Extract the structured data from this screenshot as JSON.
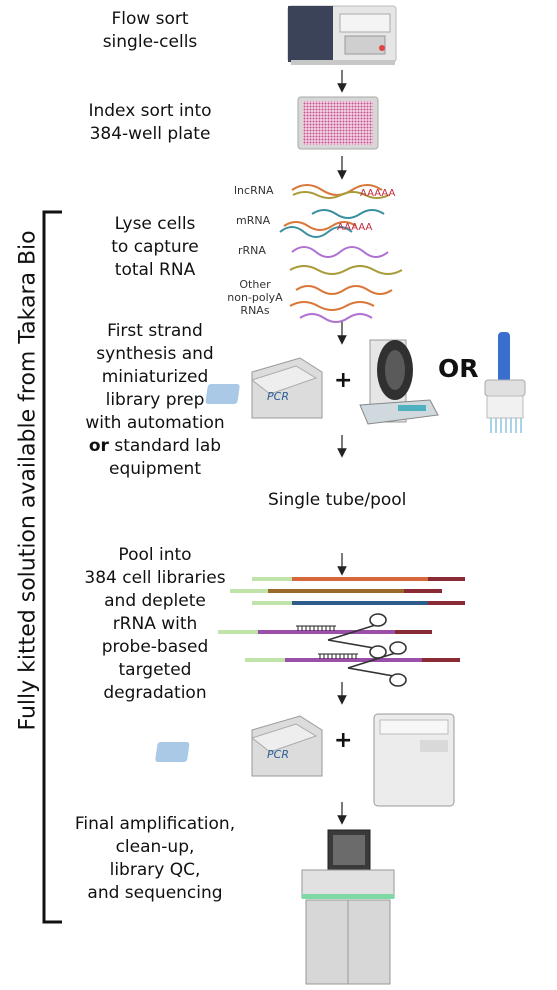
{
  "side_label": "Fully kitted solution available from Takara Bio",
  "steps": {
    "s1": [
      "Flow sort",
      "single-cells"
    ],
    "s2": [
      "Index sort into",
      "384-well plate"
    ],
    "s3": [
      "Lyse cells",
      "to capture",
      "total RNA"
    ],
    "s4": [
      "First strand",
      "synthesis and",
      "miniaturized",
      "library prep",
      "with automation"
    ],
    "s4_last_bold": "or",
    "s4_last_rest": " standard lab",
    "s4_end": "equipment",
    "s5": [
      "Pool into",
      "384 cell libraries",
      "and deplete",
      "rRNA with",
      "probe-based",
      "targeted",
      "degradation"
    ],
    "s6": [
      "Final amplification,",
      "clean-up,",
      "library QC,",
      "and sequencing"
    ]
  },
  "rna_labels": {
    "lnc": "lncRNA",
    "m": "mRNA",
    "r": "rRNA",
    "other1": "Other",
    "other2": "non-polyA",
    "other3": "RNAs",
    "polyA1": "AAAAA",
    "polyA2": "AAAAA"
  },
  "device_text": {
    "pcr1": "PCR",
    "pcr2": "PCR"
  },
  "or_label": "OR",
  "plus": "+",
  "single_tube": "Single tube/pool",
  "colors": {
    "rna_orange": "#d9773a",
    "rna_olive": "#a89b38",
    "rna_teal": "#3a8fa0",
    "rna_purple": "#b070d0",
    "polyA_red": "#c0283a",
    "lib_green": "#bfe3a9",
    "lib_orange": "#d4683a",
    "lib_brown": "#9a6a2a",
    "lib_blue": "#2f5b8c",
    "lib_purple": "#9a4fa8",
    "lib_darkred": "#8a2a35",
    "plate_pink": "#c04f8a"
  },
  "icons": [
    "flow-sorter-icon",
    "well-plate-icon",
    "pcr-machine-icon",
    "liquid-handler-icon",
    "multichannel-pipette-icon",
    "scissors-icon",
    "incubator-icon",
    "sequencer-icon",
    "down-arrow-icon"
  ]
}
